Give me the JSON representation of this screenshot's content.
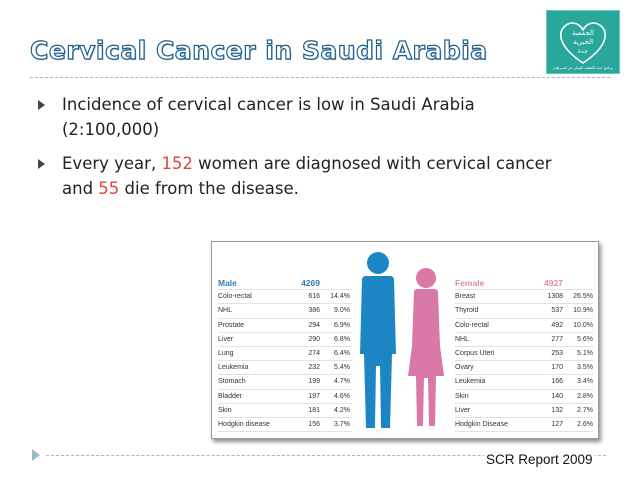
{
  "title": "Cervical Cancer in Saudi Arabia",
  "logo": {
    "line1": "الجمعية",
    "line2": "الخيرية",
    "line3": "جدة",
    "caption": "برنامج جدة للكشف المبكر عن السرطان"
  },
  "bullets": [
    {
      "text": "Incidence of cervical cancer is low in Saudi Arabia",
      "line2": "(2:100,000)"
    },
    {
      "pre": "Every year, ",
      "num1": "152",
      "mid": " women are diagnosed with cervical cancer",
      "line2pre": "and ",
      "num2": "55",
      "post": " die from the disease."
    }
  ],
  "table": {
    "male": {
      "label": "Male",
      "total": "4269",
      "rows": [
        [
          "Colo-rectal",
          "616",
          "14.4%"
        ],
        [
          "NHL",
          "386",
          "9.0%"
        ],
        [
          "Prostate",
          "294",
          "6.9%"
        ],
        [
          "Liver",
          "290",
          "6.8%"
        ],
        [
          "Lung",
          "274",
          "6.4%"
        ],
        [
          "Leukemia",
          "232",
          "5.4%"
        ],
        [
          "Stomach",
          "199",
          "4.7%"
        ],
        [
          "Bladder",
          "197",
          "4.6%"
        ],
        [
          "Skin",
          "181",
          "4.2%"
        ],
        [
          "Hodgkin disease",
          "156",
          "3.7%"
        ]
      ]
    },
    "female": {
      "label": "Female",
      "total": "4927",
      "rows": [
        [
          "Breast",
          "1308",
          "26.5%"
        ],
        [
          "Thyroid",
          "537",
          "10.9%"
        ],
        [
          "Colo-rectal",
          "492",
          "10.0%"
        ],
        [
          "NHL",
          "277",
          "5.6%"
        ],
        [
          "Corpus Uteri",
          "253",
          "5.1%"
        ],
        [
          "Ovary",
          "170",
          "3.5%"
        ],
        [
          "Leukemia",
          "166",
          "3.4%"
        ],
        [
          "Skin",
          "140",
          "2.8%"
        ],
        [
          "Liver",
          "132",
          "2.7%"
        ],
        [
          "Hodgkin Disease",
          "127",
          "2.6%"
        ]
      ]
    }
  },
  "colors": {
    "male": "#1b86c3",
    "female": "#d879a8",
    "highlight": "#e0463c",
    "logo": "#2aa79b"
  },
  "source": "SCR Report 2009"
}
